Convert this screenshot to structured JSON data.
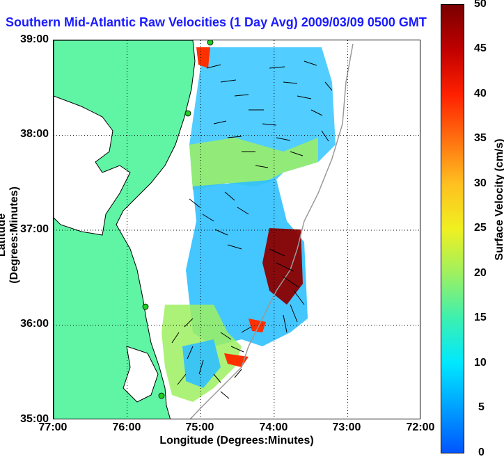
{
  "title": "Southern Mid-Atlantic Raw Velocities (1 Day Avg) 2009/03/09 0500 GMT",
  "axes": {
    "xlabel": "Longitude (Degrees:Minutes)",
    "ylabel": "Latitude (Degrees:Minutes)",
    "xticks": [
      "77:00",
      "76:00",
      "75:00",
      "74:00",
      "73:00",
      "72:00"
    ],
    "yticks": [
      "39:00",
      "38:00",
      "37:00",
      "36:00",
      "35:00"
    ]
  },
  "colorbar": {
    "label": "Surface Velocity (cm/s)",
    "ticks": [
      "50",
      "45",
      "40",
      "35",
      "30",
      "25",
      "20",
      "15",
      "10",
      "5",
      "0"
    ],
    "range": [
      0,
      50
    ]
  },
  "colors": {
    "land": "#5ff5a5",
    "title": "#1a1aff",
    "grid": "#000000",
    "station": "#22cc22"
  }
}
